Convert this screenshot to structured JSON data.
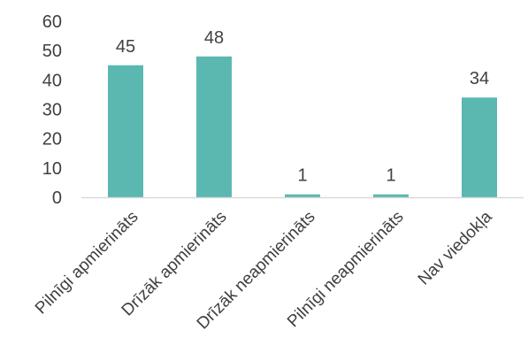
{
  "chart_data": {
    "type": "bar",
    "categories": [
      "Pilnīgi apmierināts",
      "Drīzāk apmierināts",
      "Drīzāk neapmierināts",
      "Pilnīgi neapmierināts",
      "Nav viedokļa"
    ],
    "values": [
      45,
      48,
      1,
      1,
      34
    ],
    "data_labels": [
      "45",
      "48",
      "1",
      "1",
      "34"
    ],
    "y_ticks": [
      "0",
      "10",
      "20",
      "30",
      "40",
      "50",
      "60"
    ],
    "ylim": [
      0,
      60
    ],
    "grid": false,
    "legend": "none",
    "bar_color": "#5BB8B1",
    "axis_color": "#D9D9D9",
    "text_color": "#404040"
  }
}
